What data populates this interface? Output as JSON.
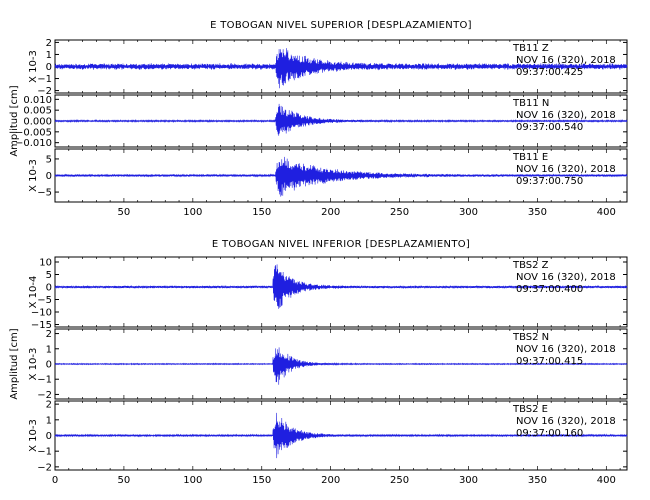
{
  "chart_data": [
    {
      "type": "line",
      "title": "E TOBOGAN NIVEL SUPERIOR [DESPLAZAMIENTO]",
      "ylabel": "Amplitud [cm]",
      "xlim": [
        0,
        415
      ],
      "x_ticks": [
        "50",
        "100",
        "150",
        "200",
        "250",
        "300",
        "350",
        "400"
      ],
      "panels": [
        {
          "station": "TB11",
          "component": "Z",
          "date": "NOV 16 (320), 2018",
          "time": "09:37:00.425",
          "scale_label": "X 10-3",
          "y_ticks": [
            "2",
            "1",
            "0",
            "-1",
            "-2"
          ],
          "ylim": [
            -2.2,
            2.2
          ],
          "noise": 0.28,
          "peak": 2.0,
          "onset": 160,
          "decay": 18,
          "seed": 11
        },
        {
          "station": "TB11",
          "component": "N",
          "date": "NOV 16 (320), 2018",
          "time": "09:37:00.540",
          "scale_label": "",
          "y_ticks": [
            "0.010",
            "0.005",
            "0.000",
            "-0.005",
            "-0.010"
          ],
          "ylim": [
            -0.012,
            0.012
          ],
          "noise": 0.0004,
          "peak": 0.0105,
          "onset": 160,
          "decay": 14,
          "seed": 23
        },
        {
          "station": "TB11",
          "component": "E",
          "date": "NOV 16 (320), 2018",
          "time": "09:37:00.750",
          "scale_label": "X 10-3",
          "y_ticks": [
            "5",
            "0",
            "-5"
          ],
          "ylim": [
            -8,
            8
          ],
          "noise": 0.4,
          "peak": 7.0,
          "onset": 160,
          "decay": 30,
          "seed": 37
        }
      ]
    },
    {
      "type": "line",
      "title": "E TOBOGAN NIVEL INFERIOR [DESPLAZAMIENTO]",
      "ylabel": "Amplitud [cm]",
      "xlim": [
        0,
        415
      ],
      "x_ticks": [
        "0",
        "50",
        "100",
        "150",
        "200",
        "250",
        "300",
        "350",
        "400"
      ],
      "panels": [
        {
          "station": "TBS2",
          "component": "Z",
          "date": "NOV 16 (320), 2018",
          "time": "09:37:00.400",
          "scale_label": "X 10-4",
          "y_ticks": [
            "10",
            "5",
            "0",
            "-5",
            "-10",
            "-15"
          ],
          "ylim": [
            -16,
            12
          ],
          "noise": 0.6,
          "peak": 14,
          "onset": 158,
          "decay": 10,
          "seed": 53
        },
        {
          "station": "TBS2",
          "component": "N",
          "date": "NOV 16 (320), 2018",
          "time": "09:37:00.415",
          "scale_label": "X 10-3",
          "y_ticks": [
            "2",
            "1",
            "0",
            "-1",
            "-2"
          ],
          "ylim": [
            -2.3,
            2.3
          ],
          "noise": 0.04,
          "peak": 2.2,
          "onset": 158,
          "decay": 9,
          "seed": 71
        },
        {
          "station": "TBS2",
          "component": "E",
          "date": "NOV 16 (320), 2018",
          "time": "09:37:00.160",
          "scale_label": "X 10-3",
          "y_ticks": [
            "2",
            "1",
            "0",
            "-1",
            "-2"
          ],
          "ylim": [
            -2.2,
            2.2
          ],
          "noise": 0.06,
          "peak": 2.0,
          "onset": 158,
          "decay": 11,
          "seed": 89
        }
      ]
    }
  ]
}
